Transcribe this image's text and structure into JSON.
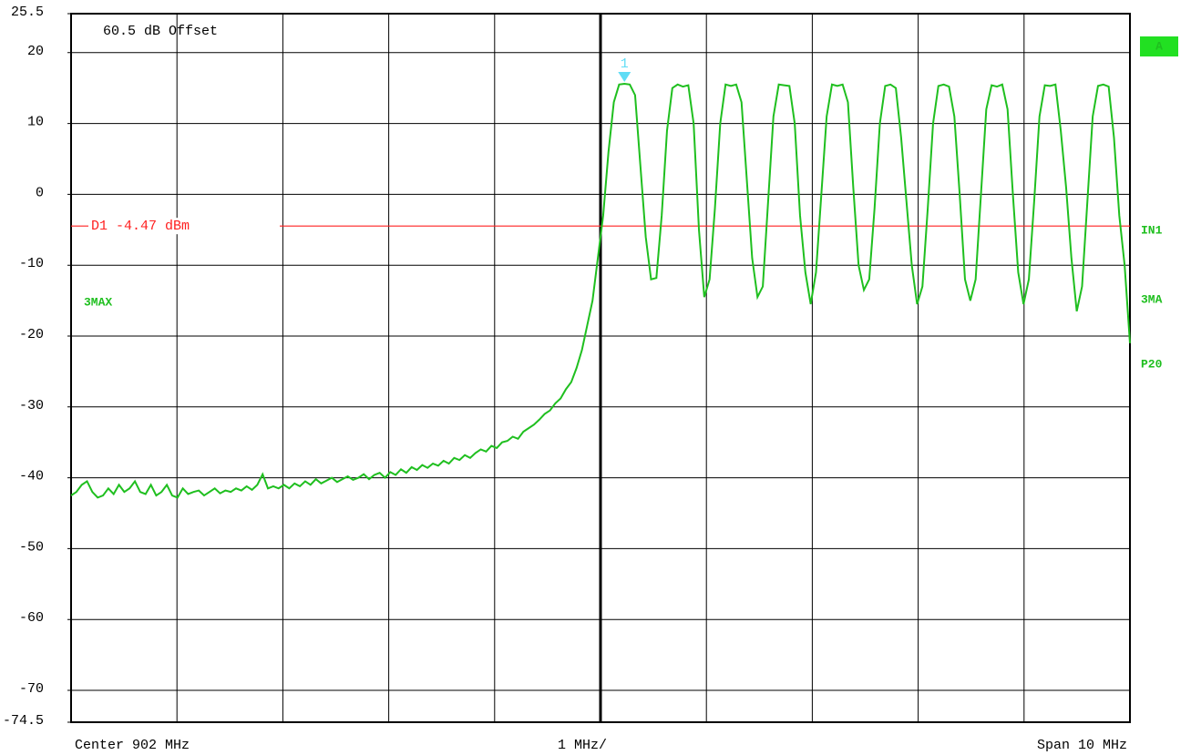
{
  "chart_data": {
    "type": "line",
    "offset_label": "60.5 dB Offset",
    "center_label": "Center 902 MHz",
    "scale_label": "1 MHz/",
    "span_label": "Span 10 MHz",
    "side_labels": [
      "A",
      "IN1",
      "3MA",
      "P20"
    ],
    "ylim": [
      -74.5,
      25.5
    ],
    "yticks": [
      25.5,
      20,
      10,
      0,
      -10,
      -20,
      -30,
      -40,
      -50,
      -60,
      -70,
      -74.5
    ],
    "grid": true,
    "reference_line": {
      "label": "D1 -4.47 dBm",
      "value": -4.47,
      "color": "#ff2020"
    },
    "marker": {
      "label": "1",
      "color": "#5fdcf5"
    },
    "series": [
      {
        "name": "3MAX",
        "color": "#1fbf1f",
        "values": [
          -42.5,
          -42,
          -41,
          -40.5,
          -42,
          -42.8,
          -42.5,
          -41.5,
          -42.3,
          -41,
          -42,
          -41.5,
          -40.5,
          -42,
          -42.3,
          -41,
          -42.5,
          -42,
          -41,
          -42.5,
          -42.8,
          -41.5,
          -42.3,
          -42,
          -41.8,
          -42.5,
          -42,
          -41.5,
          -42.2,
          -41.8,
          -42,
          -41.5,
          -41.8,
          -41.2,
          -41.7,
          -41,
          -39.5,
          -41.5,
          -41.2,
          -41.5,
          -41,
          -41.5,
          -40.8,
          -41.2,
          -40.5,
          -41,
          -40.2,
          -40.8,
          -40.4,
          -40,
          -40.6,
          -40.2,
          -39.8,
          -40.3,
          -40,
          -39.5,
          -40.2,
          -39.6,
          -39.3,
          -40,
          -39.2,
          -39.6,
          -38.8,
          -39.3,
          -38.5,
          -38.9,
          -38.2,
          -38.6,
          -38,
          -38.3,
          -37.6,
          -38,
          -37.2,
          -37.5,
          -36.8,
          -37.2,
          -36.5,
          -36,
          -36.3,
          -35.5,
          -35.8,
          -35,
          -34.8,
          -34.2,
          -34.5,
          -33.5,
          -33,
          -32.5,
          -31.8,
          -31,
          -30.5,
          -29.5,
          -28.8,
          -27.5,
          -26.5,
          -24.5,
          -22,
          -18.5,
          -15,
          -9,
          -3,
          6,
          13,
          15.5,
          15.6,
          15.5,
          14,
          4,
          -6,
          -12,
          -11.8,
          -3,
          9,
          15,
          15.5,
          15.2,
          15.4,
          10,
          -5,
          -14.5,
          -12,
          -2,
          10,
          15.5,
          15.3,
          15.5,
          13,
          2,
          -9,
          -14.5,
          -13,
          -1,
          11,
          15.5,
          15.4,
          15.3,
          10,
          -3,
          -11,
          -15.5,
          -11,
          0,
          11,
          15.5,
          15.3,
          15.5,
          13,
          1,
          -10,
          -13.5,
          -12,
          -2,
          10,
          15.3,
          15.5,
          15,
          8,
          -1,
          -10,
          -15.5,
          -13,
          -2,
          10,
          15.3,
          15.5,
          15.2,
          11,
          0,
          -12,
          -15,
          -12,
          0,
          12,
          15.4,
          15.2,
          15.5,
          12,
          0,
          -11,
          -15.5,
          -12,
          -1,
          11,
          15.4,
          15.3,
          15.5,
          9,
          1,
          -9,
          -16.5,
          -13,
          -1,
          11,
          15.3,
          15.5,
          15.2,
          8,
          -3,
          -10,
          -21
        ]
      }
    ]
  }
}
